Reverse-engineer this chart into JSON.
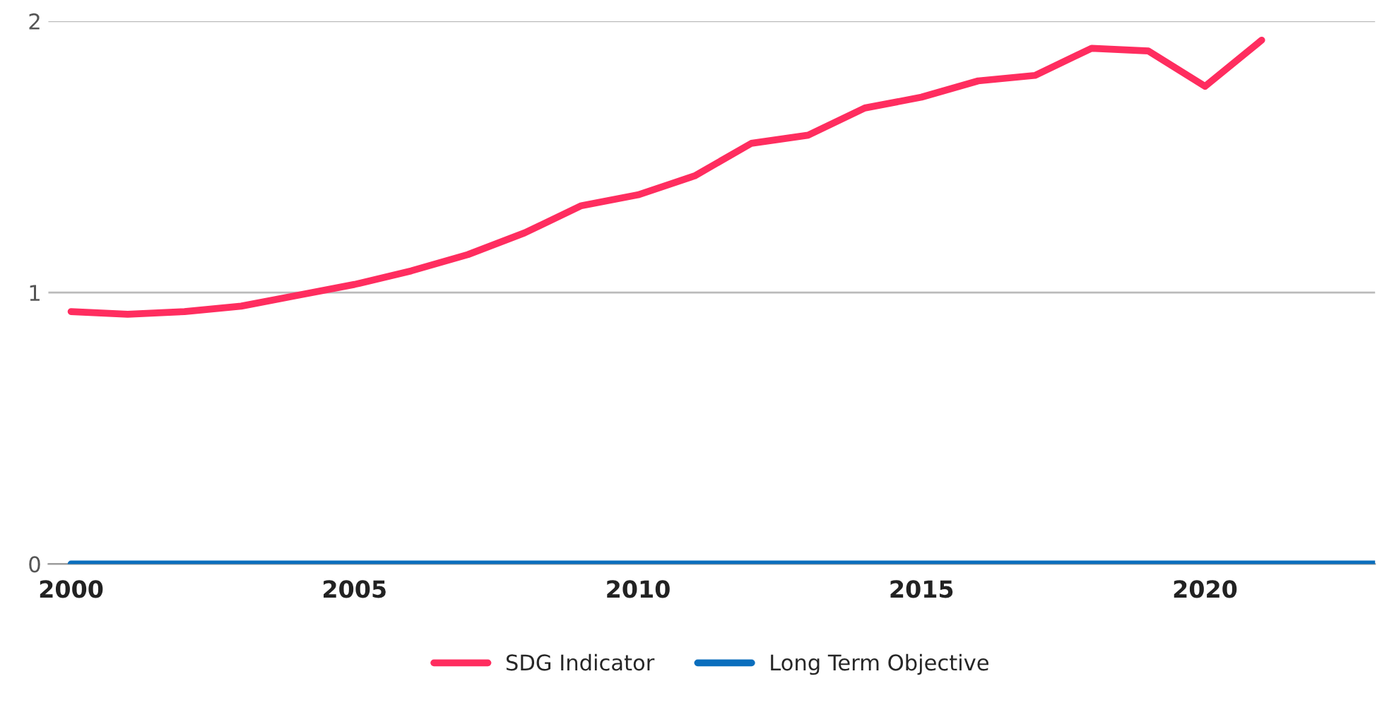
{
  "chart_data": {
    "type": "line",
    "x": [
      2000,
      2001,
      2002,
      2003,
      2004,
      2005,
      2006,
      2007,
      2008,
      2009,
      2010,
      2011,
      2012,
      2013,
      2014,
      2015,
      2016,
      2017,
      2018,
      2019,
      2020,
      2021
    ],
    "series": [
      {
        "name": "SDG Indicator",
        "color": "#ff2d5f",
        "values": [
          0.93,
          0.92,
          0.93,
          0.95,
          0.99,
          1.03,
          1.08,
          1.14,
          1.22,
          1.32,
          1.36,
          1.43,
          1.55,
          1.58,
          1.68,
          1.72,
          1.78,
          1.8,
          1.9,
          1.89,
          1.76,
          1.93
        ]
      },
      {
        "name": "Long Term Objective",
        "color": "#0a6ebd",
        "x": [
          2000,
          2023
        ],
        "values": [
          0,
          0
        ]
      }
    ],
    "xlim": [
      1999.6,
      2023
    ],
    "xticks": [
      2000,
      2005,
      2010,
      2015,
      2020
    ],
    "ylim": [
      0,
      2
    ],
    "yticks": [
      0,
      1,
      2
    ],
    "grid": "y",
    "legend": "bottom",
    "marker": "none",
    "line_style": "solid"
  }
}
